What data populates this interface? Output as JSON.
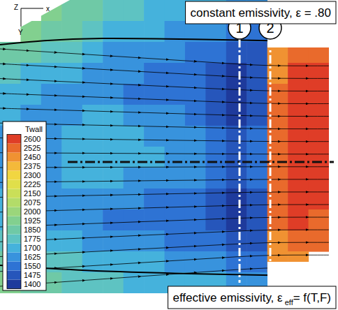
{
  "chart_data": {
    "type": "contour",
    "title": "constant emissivity, ε = .80",
    "subtitle": {
      "text": "effective emissivity, ε",
      "subscript": "eff",
      "suffix": "= f(T,F)"
    },
    "annotations": [
      "1",
      "2"
    ],
    "axis_labels": [
      "Z",
      "x",
      "Y"
    ],
    "colorbar": {
      "title": "Twall",
      "range": [
        1400,
        2600
      ],
      "ticks": [
        1400,
        1475,
        1550,
        1625,
        1700,
        1775,
        1850,
        1925,
        2000,
        2075,
        2150,
        2225,
        2300,
        2375,
        2450,
        2525,
        2600
      ]
    },
    "cells": [
      [
        null,
        null,
        1925,
        1850,
        1850,
        1775,
        1775,
        1700,
        1700,
        1700,
        1700,
        1625,
        1625,
        null,
        null,
        null
      ],
      [
        null,
        1925,
        1850,
        1850,
        1775,
        1700,
        1700,
        1700,
        1625,
        1625,
        1625,
        1550,
        1550,
        null,
        null,
        null
      ],
      [
        1850,
        1850,
        1775,
        1775,
        1700,
        1625,
        1625,
        1625,
        1625,
        1550,
        1550,
        1475,
        1475,
        2450,
        2525,
        2525
      ],
      [
        1775,
        1700,
        1700,
        1700,
        1625,
        1625,
        1625,
        1550,
        1550,
        1550,
        1475,
        1400,
        1475,
        2450,
        2600,
        2600
      ],
      [
        1700,
        1700,
        1625,
        1625,
        1625,
        1625,
        1550,
        1550,
        1550,
        1550,
        1475,
        1400,
        1475,
        2525,
        2600,
        2600
      ],
      [
        1700,
        1625,
        1625,
        1625,
        1700,
        1700,
        1625,
        1625,
        1625,
        1550,
        1475,
        1400,
        1475,
        2525,
        2600,
        2600
      ],
      [
        1625,
        1625,
        1625,
        1700,
        1700,
        1700,
        1700,
        1625,
        1625,
        1625,
        1550,
        1475,
        1550,
        2525,
        2600,
        2600
      ],
      [
        1625,
        1625,
        1625,
        1700,
        1700,
        1700,
        1700,
        1700,
        1625,
        1625,
        1550,
        1475,
        1550,
        2525,
        2600,
        2600
      ],
      [
        1625,
        1625,
        1625,
        1700,
        1700,
        1700,
        1625,
        1625,
        1625,
        1625,
        1550,
        1475,
        1550,
        2525,
        2600,
        2600
      ],
      [
        1700,
        1625,
        1625,
        1625,
        1625,
        1625,
        1625,
        1550,
        1550,
        1550,
        1475,
        1400,
        1475,
        2525,
        2600,
        2600
      ],
      [
        1700,
        1700,
        1625,
        1625,
        1625,
        1550,
        1550,
        1550,
        1550,
        1550,
        1475,
        1400,
        1475,
        2525,
        2600,
        2525
      ],
      [
        1775,
        1700,
        1700,
        1700,
        1625,
        1625,
        1625,
        1625,
        1550,
        1550,
        1550,
        1475,
        1475,
        2450,
        2525,
        2525
      ],
      [
        1850,
        1775,
        1775,
        1775,
        1700,
        1700,
        1700,
        1700,
        1625,
        1625,
        1625,
        1550,
        1550,
        2450,
        2450,
        null
      ],
      [
        1925,
        1850,
        1850,
        1775,
        1775,
        1775,
        1700,
        1700,
        1700,
        1700,
        1700,
        1625,
        1625,
        null,
        null,
        null
      ]
    ]
  }
}
